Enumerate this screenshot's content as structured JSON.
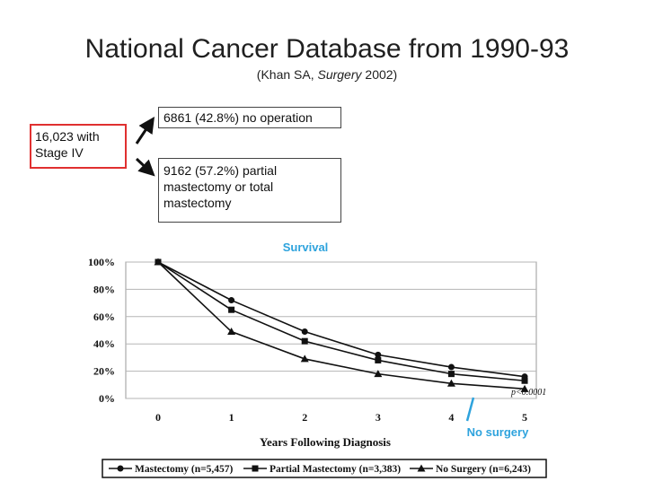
{
  "slide": {
    "title": "National Cancer Database from 1990-93",
    "subtitle_prefix": "(Khan SA, ",
    "subtitle_journal": "Surgery",
    "subtitle_suffix": " 2002)",
    "stage_box": "16,023 with\nStage IV",
    "no_operation_box": "6861 (42.8%) no operation",
    "mastectomy_box": "9162 (57.2%) partial\nmastectomy or total\nmastectomy",
    "survival_label": "Survival",
    "no_surgery_label": "No surgery",
    "accent_color": "#2ea3dd",
    "stage_box_border": "#e03030"
  },
  "chart_data": {
    "type": "line",
    "xlabel": "Years Following Diagnosis",
    "ylabel": "",
    "x": [
      0,
      1,
      2,
      3,
      4,
      5
    ],
    "xlim": [
      0,
      5.6
    ],
    "ylim": [
      0,
      100
    ],
    "yticks": [
      "0%",
      "20%",
      "40%",
      "60%",
      "80%",
      "100%"
    ],
    "grid": true,
    "legend_placement": "bottom",
    "annotation": "p<0.0001",
    "series": [
      {
        "name": "Mastectomy (n=5,457)",
        "marker": "circle",
        "values": [
          100,
          72,
          49,
          32,
          23,
          16
        ]
      },
      {
        "name": "Partial Mastectomy (n=3,383)",
        "marker": "square",
        "values": [
          100,
          65,
          42,
          28,
          18,
          13
        ]
      },
      {
        "name": "No Surgery (n=6,243)",
        "marker": "triangle",
        "values": [
          100,
          49,
          29,
          18,
          11,
          7
        ]
      }
    ]
  }
}
